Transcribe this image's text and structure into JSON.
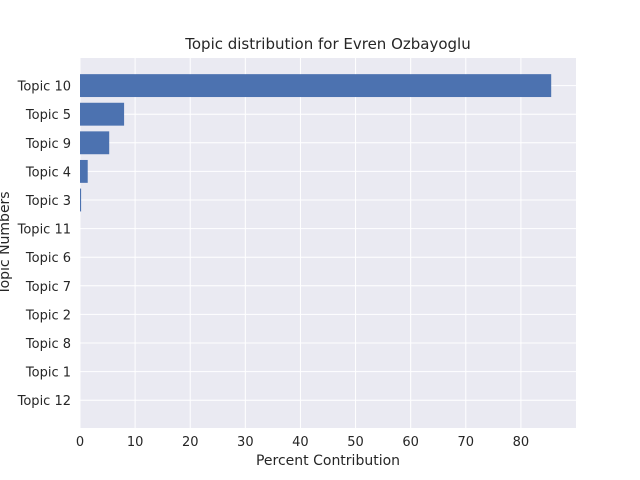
{
  "chart_data": {
    "type": "bar",
    "orientation": "horizontal",
    "title": "Topic distribution for Evren Ozbayoglu",
    "xlabel": "Percent Contribution",
    "ylabel": "Topic Numbers",
    "categories": [
      "Topic 10",
      "Topic 5",
      "Topic 9",
      "Topic 4",
      "Topic 3",
      "Topic 11",
      "Topic 6",
      "Topic 7",
      "Topic 2",
      "Topic 8",
      "Topic 1",
      "Topic 12"
    ],
    "values": [
      85.5,
      8.0,
      5.3,
      1.4,
      0.2,
      0.0,
      0.0,
      0.0,
      0.0,
      0.0,
      0.0,
      0.0
    ],
    "xlim": [
      0,
      90
    ],
    "xticks": [
      0,
      10,
      20,
      30,
      40,
      50,
      60,
      70,
      80
    ],
    "grid": true,
    "colors": {
      "bar": "#4c72b0",
      "background": "#eaeaf2",
      "grid": "#ffffff",
      "text": "#262626"
    }
  }
}
